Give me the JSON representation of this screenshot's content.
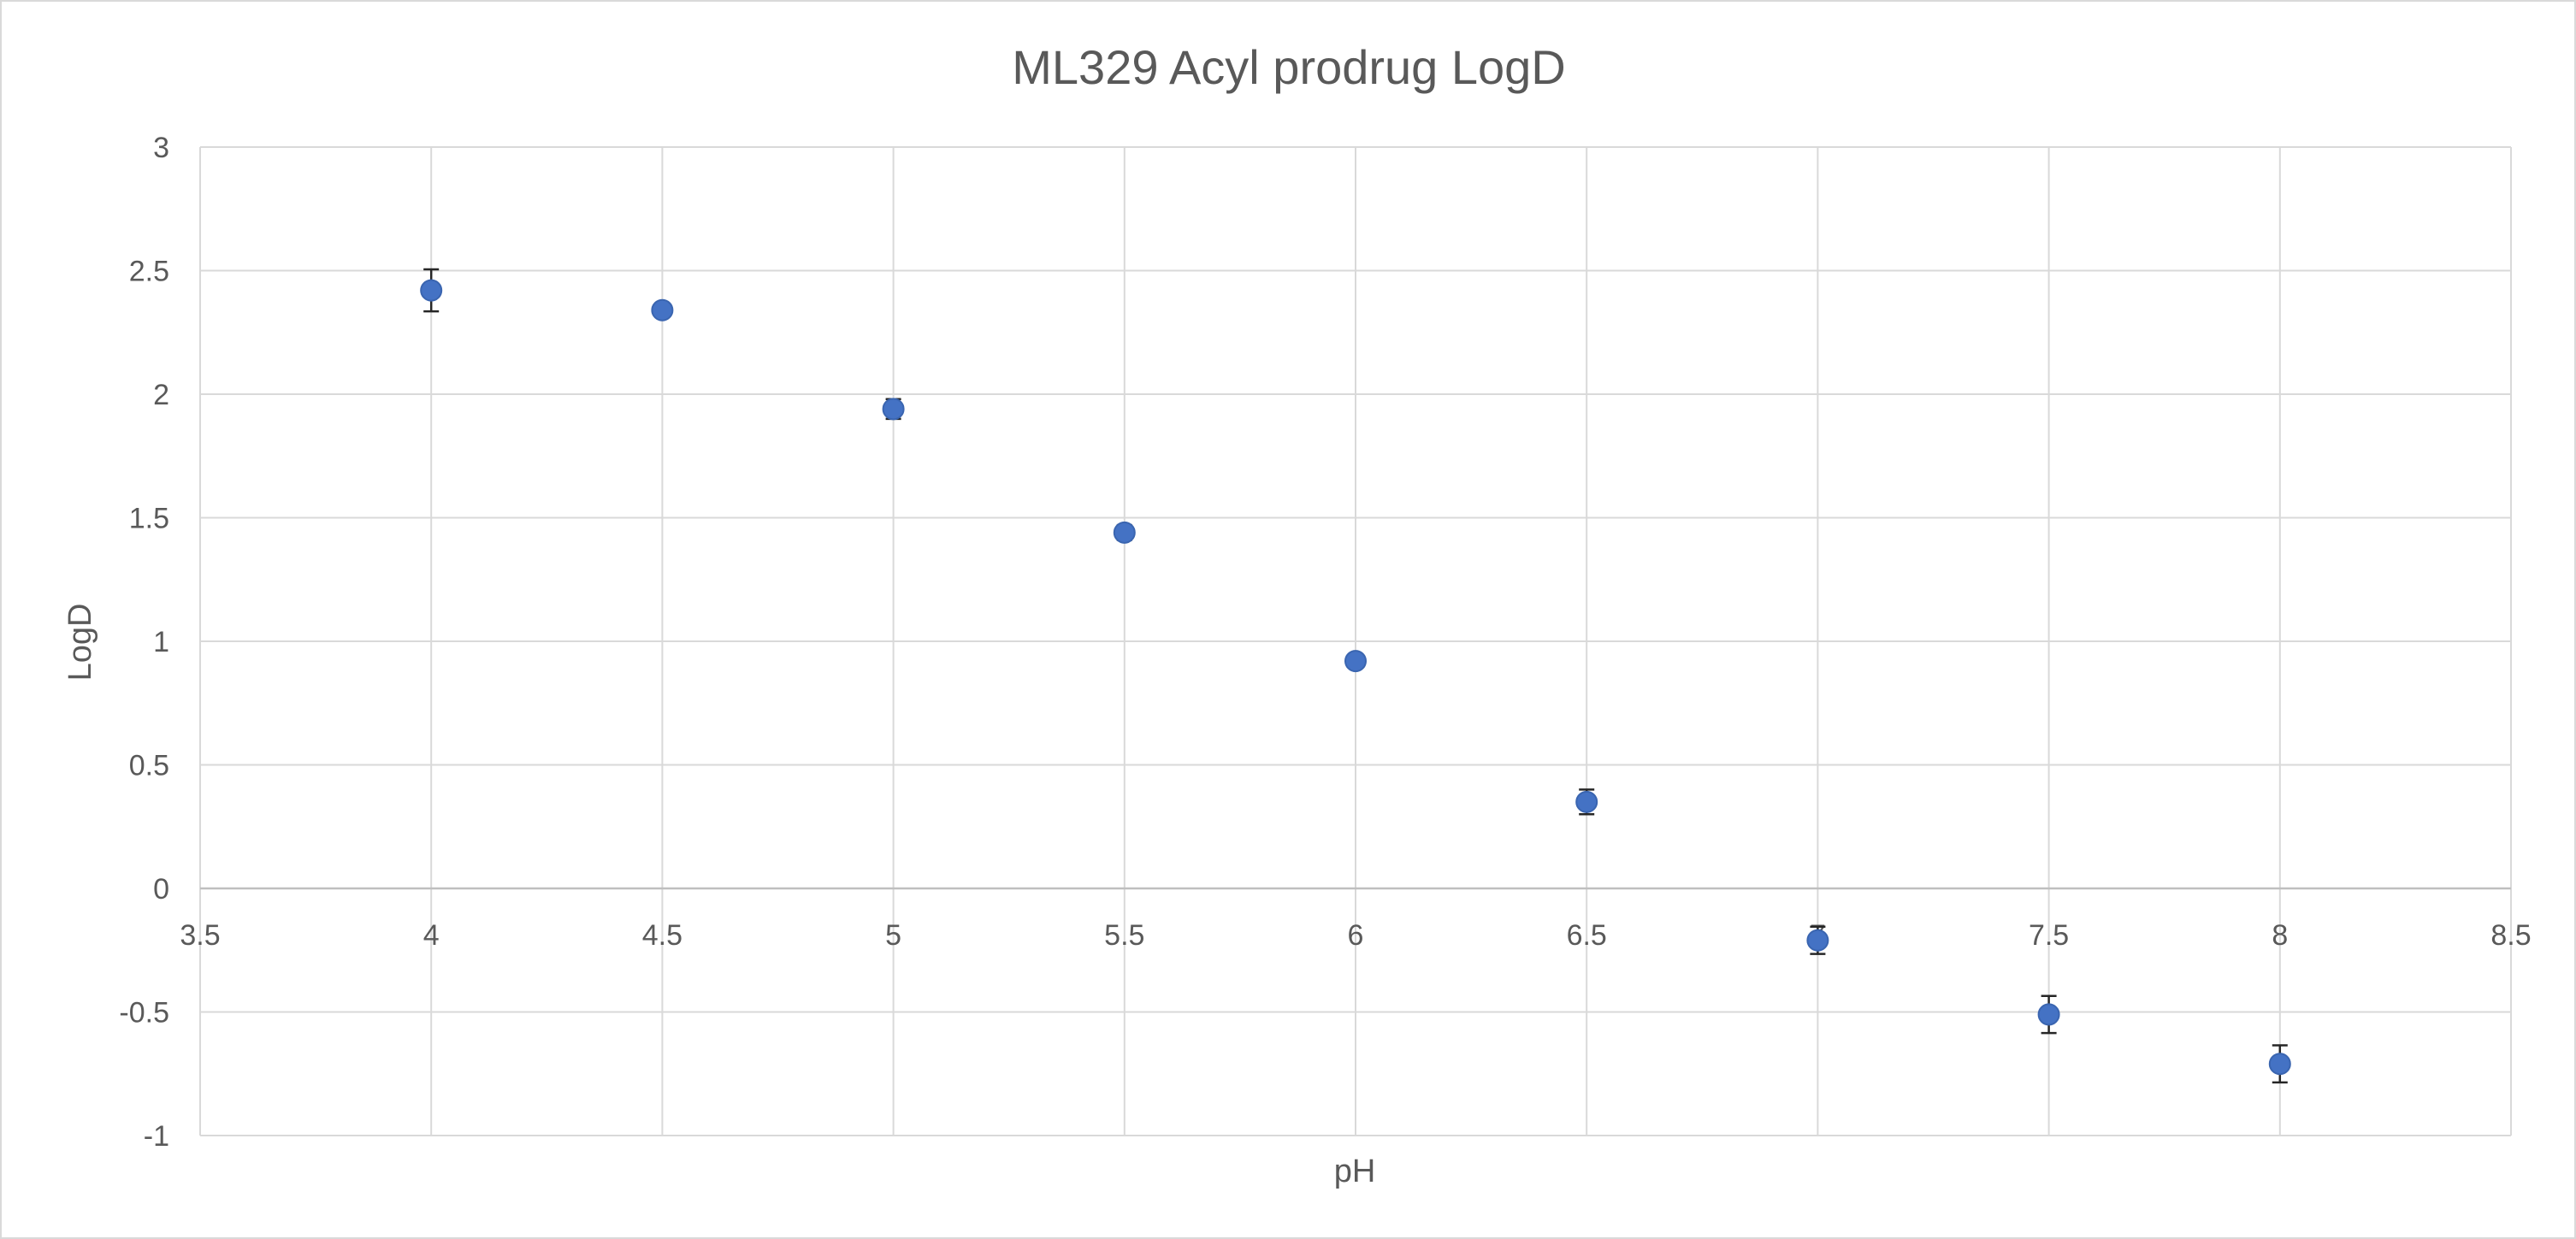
{
  "chart_data": {
    "type": "scatter",
    "title": "ML329 Acyl prodrug LogD",
    "xlabel": "pH",
    "ylabel": "LogD",
    "xlim": [
      3.5,
      8.5
    ],
    "ylim": [
      -1,
      3
    ],
    "x_ticks": [
      "3.5",
      "4",
      "4.5",
      "5",
      "5.5",
      "6",
      "6.5",
      "7",
      "7.5",
      "8",
      "8.5"
    ],
    "y_ticks": [
      "3",
      "2.5",
      "2",
      "1.5",
      "1",
      "0.5",
      "0",
      "-0.5",
      "-1"
    ],
    "grid": true,
    "legend": "none",
    "marker_color": "#4472C4",
    "series": [
      {
        "x": [
          4,
          4.5,
          5,
          5.5,
          6,
          6.5,
          7,
          7.5,
          8
        ],
        "y": [
          2.42,
          2.34,
          1.94,
          1.44,
          0.92,
          0.35,
          -0.21,
          -0.51,
          -0.71
        ],
        "error": [
          0.085,
          0.01,
          0.04,
          0.03,
          0.01,
          0.05,
          0.055,
          0.075,
          0.075
        ]
      }
    ]
  }
}
